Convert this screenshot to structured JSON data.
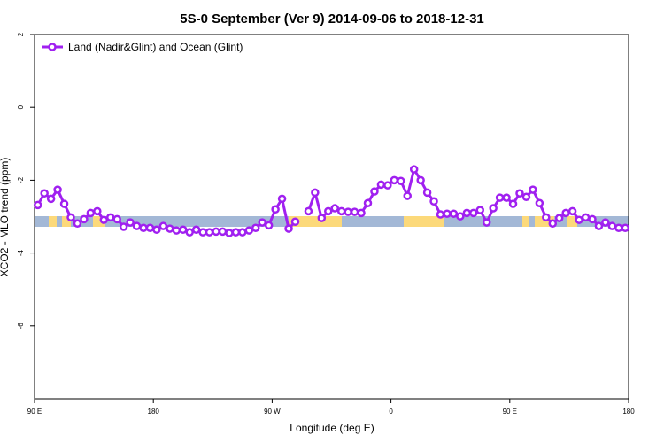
{
  "chart_data": {
    "type": "line",
    "title": "5S-0 September (Ver 9)   2014-09-06 to 2018-12-31",
    "x_label": "Longitude (deg E)",
    "y_label": "XCO2 - MLO trend (ppm)",
    "xlim": [
      90,
      540
    ],
    "xticks": [
      {
        "value": 90,
        "label": "90 E"
      },
      {
        "value": 180,
        "label": "180"
      },
      {
        "value": 270,
        "label": "90 W"
      },
      {
        "value": 360,
        "label": "0"
      },
      {
        "value": 450,
        "label": "90 E"
      },
      {
        "value": 540,
        "label": "180"
      }
    ],
    "ylim": [
      -8,
      2
    ],
    "yticks": [
      2,
      0,
      -2,
      -4,
      -6
    ],
    "legend": "top-left",
    "x": [
      92.5,
      97.5,
      102.5,
      107.5,
      112.5,
      117.5,
      122.5,
      127.5,
      132.5,
      137.5,
      142.5,
      147.5,
      152.5,
      157.5,
      162.5,
      167.5,
      172.5,
      177.5,
      182.5,
      187.5,
      192.5,
      197.5,
      202.5,
      207.5,
      212.5,
      217.5,
      222.5,
      227.5,
      232.5,
      237.5,
      242.5,
      247.5,
      252.5,
      257.5,
      262.5,
      267.5,
      272.5,
      277.5,
      282.5,
      287.5,
      292.5,
      297.5,
      302.5,
      307.5,
      312.5,
      317.5,
      322.5,
      327.5,
      332.5,
      337.5,
      342.5,
      347.5,
      352.5,
      357.5,
      362.5,
      367.5,
      372.5,
      377.5,
      382.5,
      387.5,
      392.5,
      397.5,
      402.5,
      407.5,
      412.5,
      417.5,
      422.5,
      427.5,
      432.5,
      437.5,
      442.5,
      447.5,
      452.5,
      457.5,
      462.5,
      467.5,
      472.5,
      477.5,
      482.5,
      487.5,
      492.5,
      497.5,
      502.5,
      507.5,
      512.5,
      517.5,
      522.5,
      527.5,
      532.5,
      537.5
    ],
    "series": [
      {
        "name": "Land (Nadir&Glint) and Ocean (Glint)",
        "color": "#a020f0",
        "values": [
          -2.68,
          -2.36,
          -2.51,
          -2.26,
          -2.65,
          -3.02,
          -3.19,
          -3.07,
          -2.9,
          -2.85,
          -3.09,
          -3.02,
          -3.07,
          -3.28,
          -3.16,
          -3.26,
          -3.31,
          -3.31,
          -3.36,
          -3.26,
          -3.33,
          -3.38,
          -3.36,
          -3.43,
          -3.36,
          -3.43,
          -3.43,
          -3.41,
          -3.41,
          -3.45,
          -3.43,
          -3.43,
          -3.38,
          -3.31,
          -3.16,
          -3.24,
          -2.8,
          -2.51,
          -3.33,
          -3.14,
          null,
          -2.85,
          -2.34,
          -3.04,
          -2.85,
          -2.77,
          -2.85,
          -2.87,
          -2.87,
          -2.9,
          -2.63,
          -2.31,
          -2.12,
          -2.14,
          -2.0,
          -2.02,
          -2.43,
          -1.7,
          -2.0,
          -2.34,
          -2.58,
          -2.94,
          -2.92,
          -2.92,
          -2.99,
          -2.9,
          -2.9,
          -2.82,
          -3.16,
          -2.77,
          -2.48,
          -2.48,
          -2.65,
          -2.36,
          -2.46,
          -2.26,
          -2.63,
          -3.02,
          -3.19,
          -3.04,
          -2.9,
          -2.85,
          -3.09,
          -3.02,
          -3.07,
          -3.26,
          -3.16,
          -3.26,
          -3.31,
          -3.31
        ]
      }
    ]
  }
}
